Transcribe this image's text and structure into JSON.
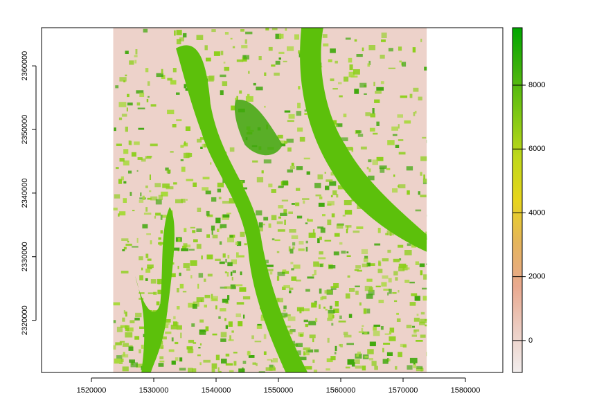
{
  "map": {
    "x_axis": {
      "ticks": [
        1520000,
        1530000,
        1540000,
        1550000,
        1560000,
        1570000,
        1580000
      ],
      "tick_labels": [
        "1520000",
        "1530000",
        "1540000",
        "1550000",
        "1560000",
        "1570000",
        "1580000"
      ],
      "range": [
        1512000,
        1586000
      ]
    },
    "y_axis": {
      "ticks": [
        2320000,
        2330000,
        2340000,
        2350000,
        2360000
      ],
      "tick_labels": [
        "2320000",
        "2330000",
        "2340000",
        "2350000",
        "2360000"
      ],
      "range": [
        2311800,
        2366000
      ]
    },
    "raster_extent": {
      "xmin": 1523500,
      "xmax": 1573800,
      "ymin": 2311800,
      "ymax": 2366000
    },
    "colorbar": {
      "ticks": [
        0,
        2000,
        4000,
        6000,
        8000
      ],
      "tick_labels": [
        "0",
        "2000",
        "4000",
        "6000",
        "8000"
      ],
      "range": [
        -1000,
        9800
      ],
      "color_stops": [
        "#f2eeee",
        "#eccdc3",
        "#e9a98f",
        "#e5b45c",
        "#e7d51c",
        "#bfd81a",
        "#7ec814",
        "#40b20c",
        "#00a600"
      ]
    },
    "land_cover_colors": {
      "background": "#edd2ca",
      "water": "#5cc00b",
      "forest": "#3ea80b",
      "crop": "#8ccf1a",
      "shrub": "#a7d93a"
    }
  }
}
